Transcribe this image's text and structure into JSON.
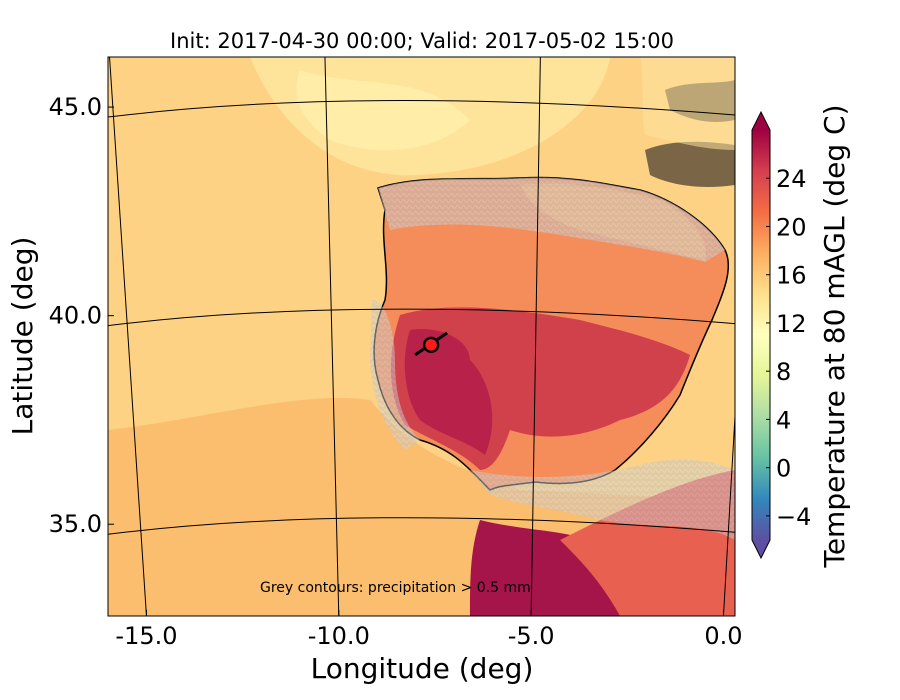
{
  "chart_data": {
    "type": "heatmap",
    "title": "Init: 2017-04-30 00:00; Valid: 2017-05-02 15:00",
    "xlabel": "Longitude (deg)",
    "ylabel": "Latitude (deg)",
    "x_ticks": [
      "-15.0",
      "-10.0",
      "-5.0",
      "0.0"
    ],
    "x_tick_values": [
      -15,
      -10,
      -5,
      0
    ],
    "y_ticks": [
      "35.0",
      "40.0",
      "45.0"
    ],
    "y_tick_values": [
      35,
      40,
      45
    ],
    "xlim": [
      -16.0,
      0.3
    ],
    "ylim": [
      32.8,
      46.2
    ],
    "colorbar": {
      "label": "Temperature at 80 mAGL (deg C)",
      "ticks": [
        "−4",
        "0",
        "4",
        "8",
        "12",
        "16",
        "20",
        "24"
      ],
      "tick_values": [
        -4,
        0,
        4,
        8,
        12,
        16,
        20,
        24
      ],
      "range": [
        -6,
        28
      ],
      "colors": [
        "#5e4fa2",
        "#3288bd",
        "#66c2a5",
        "#abdda4",
        "#e6f598",
        "#ffffbf",
        "#fee08b",
        "#fdae61",
        "#f46d43",
        "#d53e4f",
        "#9e0142"
      ]
    },
    "annotation": "Grey contours: precipitation > 0.5 mm",
    "grid": true,
    "marker": {
      "lon": -7.6,
      "lat": 39.3
    }
  }
}
